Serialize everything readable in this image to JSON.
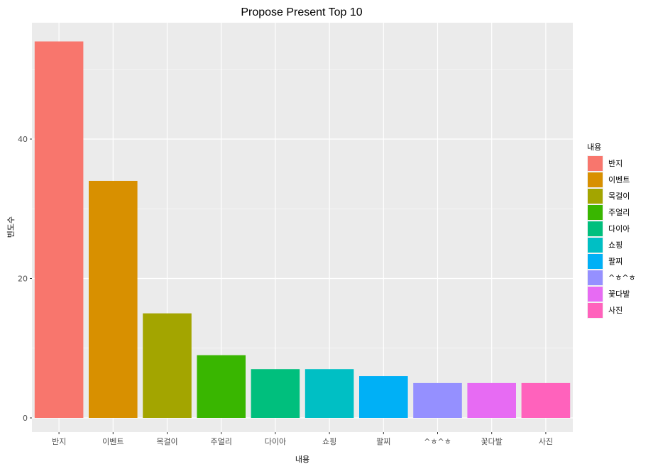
{
  "chart_data": {
    "type": "bar",
    "title": "Propose Present Top 10",
    "xlabel": "내용",
    "ylabel": "빈도수",
    "categories": [
      "반지",
      "이벤트",
      "목걸이",
      "주얼리",
      "다이아",
      "쇼핑",
      "팔찌",
      "^ㅎ^ㅎ",
      "꽃다발",
      "사진"
    ],
    "values": [
      54,
      34,
      15,
      9,
      7,
      7,
      6,
      5,
      5,
      5
    ],
    "colors": [
      "#F8766D",
      "#D89000",
      "#A3A500",
      "#39B600",
      "#00BF7D",
      "#00BFC4",
      "#00B0F6",
      "#9590FF",
      "#E76BF3",
      "#FF62BC"
    ],
    "y_ticks": [
      0,
      20,
      40
    ],
    "ylim": [
      0,
      56.7
    ],
    "grid": true,
    "legend": {
      "title": "내용",
      "position": "right"
    }
  }
}
